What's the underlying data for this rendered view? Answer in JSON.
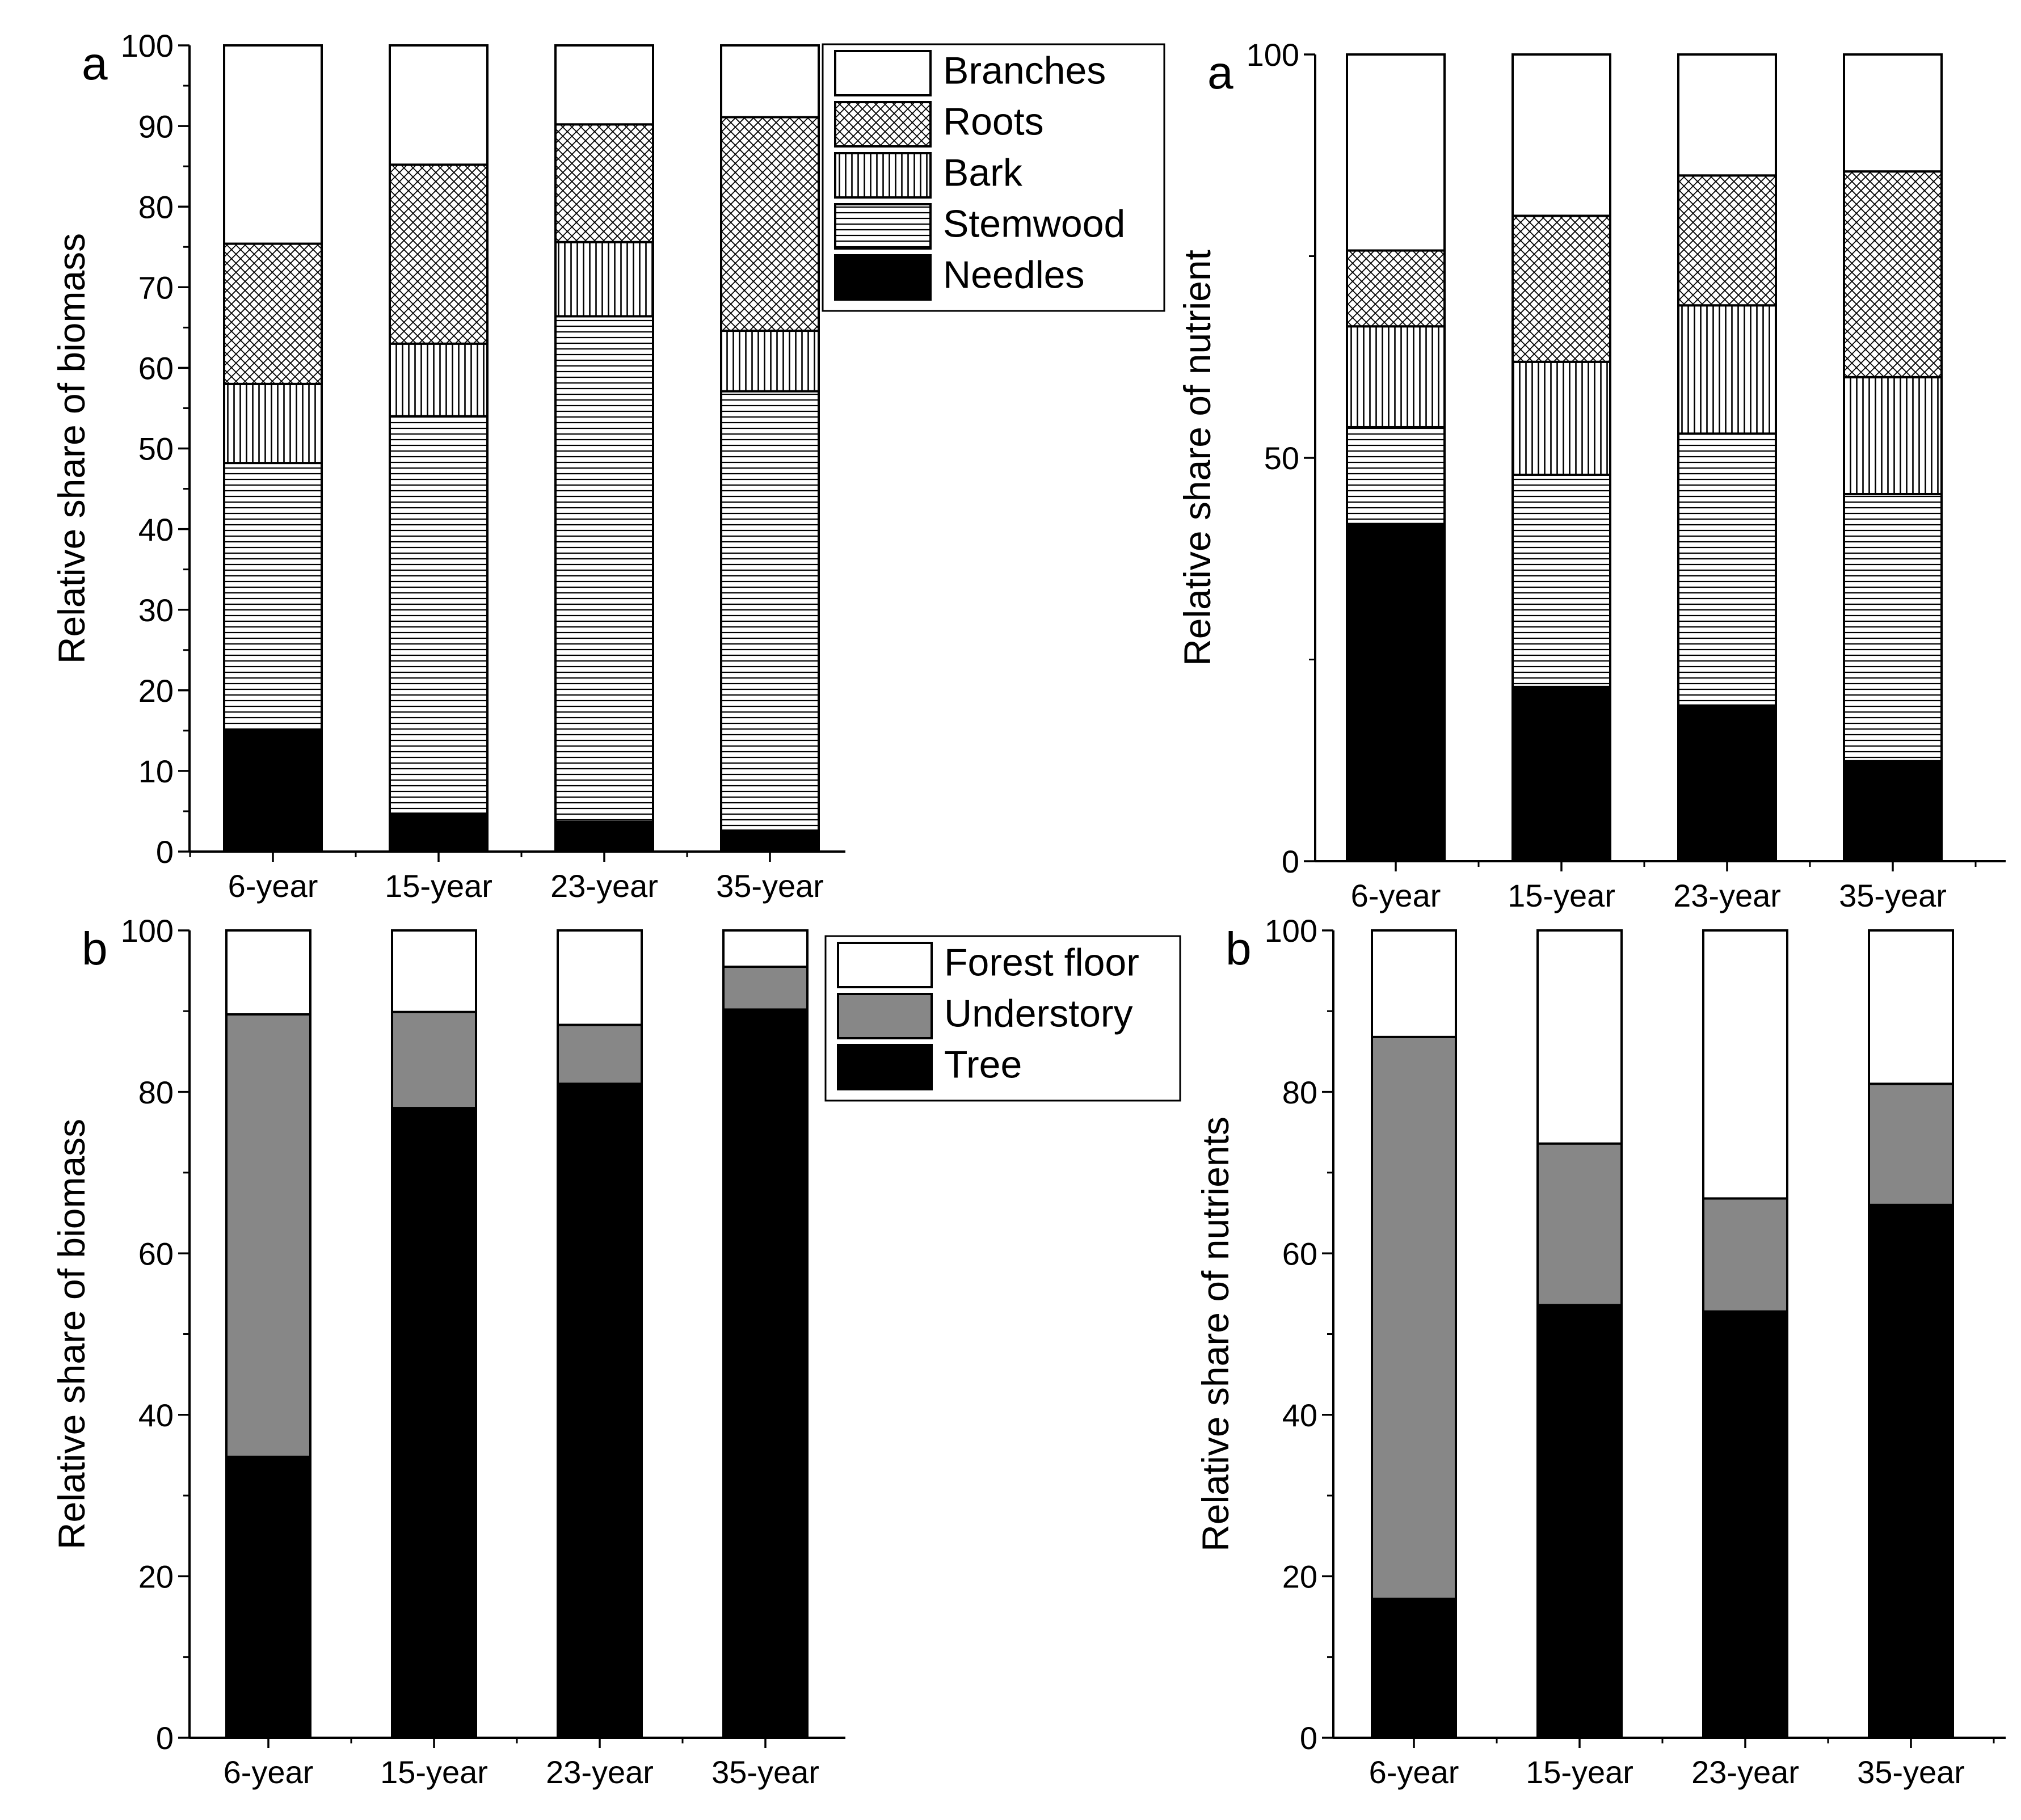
{
  "chart_data": [
    {
      "type": "bar",
      "stacked": true,
      "panel_label": "a",
      "ylabel": "Relative share of biomass",
      "ylim": [
        0,
        100
      ],
      "major_ticks": [
        0,
        10,
        20,
        30,
        40,
        50,
        60,
        70,
        80,
        90,
        100
      ],
      "minor_step": 5,
      "categories": [
        "6-year",
        "15-year",
        "23-year",
        "35-year"
      ],
      "legend_position": "top-right",
      "series": [
        {
          "name": "Needles",
          "pattern": "solid",
          "values": [
            15,
            4.7,
            3.7,
            2.6
          ]
        },
        {
          "name": "Stemwood",
          "pattern": "horizontal",
          "values": [
            33.2,
            49.3,
            62.7,
            54.5
          ]
        },
        {
          "name": "Bark",
          "pattern": "vertical",
          "values": [
            9.8,
            9,
            9.2,
            7.5
          ]
        },
        {
          "name": "Roots",
          "pattern": "crosshatch",
          "values": [
            17.4,
            22.2,
            14.6,
            26.5
          ]
        },
        {
          "name": "Branches",
          "pattern": "white",
          "values": [
            24.6,
            14.8,
            9.8,
            8.9
          ]
        }
      ],
      "legend_order": [
        "Branches",
        "Roots",
        "Bark",
        "Stemwood",
        "Needles"
      ]
    },
    {
      "type": "bar",
      "stacked": true,
      "panel_label": "a",
      "ylabel": "Relative share of nutrient",
      "ylim": [
        0,
        100
      ],
      "major_ticks": [
        0,
        50,
        100
      ],
      "minor_step": 25,
      "categories": [
        "6-year",
        "15-year",
        "23-year",
        "35-year"
      ],
      "series": [
        {
          "name": "Needles",
          "pattern": "solid",
          "values": [
            41.8,
            21.6,
            19.3,
            12.4
          ]
        },
        {
          "name": "Stemwood",
          "pattern": "horizontal",
          "values": [
            12,
            26.3,
            33.7,
            33.1
          ]
        },
        {
          "name": "Bark",
          "pattern": "vertical",
          "values": [
            12.5,
            14,
            15.9,
            14.5
          ]
        },
        {
          "name": "Roots",
          "pattern": "crosshatch",
          "values": [
            9.4,
            18.1,
            16.1,
            25.5
          ]
        },
        {
          "name": "Branches",
          "pattern": "white",
          "values": [
            24.3,
            20,
            15,
            14.5
          ]
        }
      ]
    },
    {
      "type": "bar",
      "stacked": true,
      "panel_label": "b",
      "ylabel": "Relative share of biomass",
      "ylim": [
        0,
        100
      ],
      "major_ticks": [
        0,
        20,
        40,
        60,
        80,
        100
      ],
      "minor_step": 10,
      "categories": [
        "6-year",
        "15-year",
        "23-year",
        "35-year"
      ],
      "legend_position": "top-right",
      "series": [
        {
          "name": "Tree",
          "pattern": "black",
          "values": [
            34.8,
            78,
            81,
            90.2
          ]
        },
        {
          "name": "Understory",
          "pattern": "grey",
          "values": [
            54.8,
            11.9,
            7.3,
            5.3
          ]
        },
        {
          "name": "Forest floor",
          "pattern": "white",
          "values": [
            10.4,
            10.1,
            11.7,
            4.5
          ]
        }
      ],
      "legend_order": [
        "Forest floor",
        "Understory",
        "Tree"
      ]
    },
    {
      "type": "bar",
      "stacked": true,
      "panel_label": "b",
      "ylabel": "Relative share of nutrients",
      "ylim": [
        0,
        100
      ],
      "major_ticks": [
        0,
        20,
        40,
        60,
        80,
        100
      ],
      "minor_step": 10,
      "categories": [
        "6-year",
        "15-year",
        "23-year",
        "35-year"
      ],
      "series": [
        {
          "name": "Tree",
          "pattern": "black",
          "values": [
            17.2,
            53.6,
            52.8,
            66
          ]
        },
        {
          "name": "Understory",
          "pattern": "grey",
          "values": [
            69.6,
            20,
            14,
            15
          ]
        },
        {
          "name": "Forest floor",
          "pattern": "white",
          "values": [
            13.2,
            26.4,
            33.2,
            19
          ]
        }
      ]
    }
  ]
}
